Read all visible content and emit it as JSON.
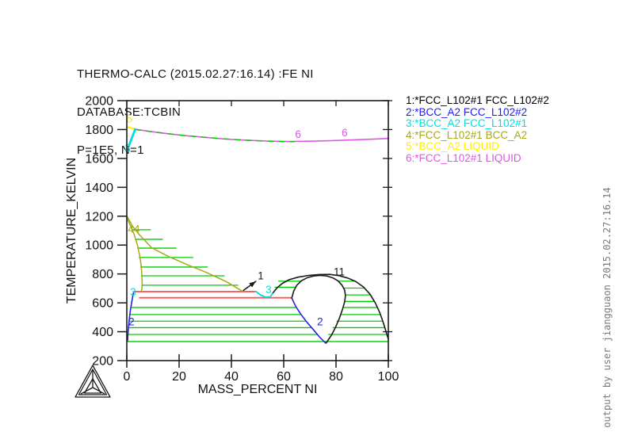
{
  "header": {
    "line1": "THERMO-CALC (2015.02.27:16.14) :FE NI",
    "line2": "DATABASE:TCBIN",
    "line3": "P=1E5, N=1"
  },
  "legend": {
    "items": [
      {
        "label": "1:*FCC_L102#1 FCC_L102#2",
        "color": "#000000"
      },
      {
        "label": "2:*BCC_A2 FCC_L102#2",
        "color": "#1a1aff"
      },
      {
        "label": "3:*BCC_A2 FCC_L102#1",
        "color": "#00e0e0"
      },
      {
        "label": "4:*FCC_L102#1 BCC_A2",
        "color": "#a8a818"
      },
      {
        "label": "5:*BCC_A2 LIQUID",
        "color": "#ffee00"
      },
      {
        "label": "6:*FCC_L102#1 LIQUID",
        "color": "#e055e5"
      }
    ]
  },
  "sidebar_note": {
    "text": "output by user jiangguaon  2015.02.27:16.14",
    "color": "#7a7a7a"
  },
  "logo": {
    "name": "thermo-calc-triangle"
  },
  "chart_data": {
    "type": "line",
    "title": "",
    "xlabel": "MASS_PERCENT NI",
    "ylabel": "TEMPERATURE_KELVIN",
    "xlim": [
      0,
      100
    ],
    "ylim": [
      200,
      2000
    ],
    "xticks": [
      0,
      20,
      40,
      60,
      80,
      100
    ],
    "yticks": [
      200,
      400,
      600,
      800,
      1000,
      1200,
      1400,
      1600,
      1800,
      2000
    ],
    "grid": false,
    "legend_position": "outside-right",
    "colors": {
      "tie": "#00cc00",
      "invariant": "#ff5555",
      "blue": "#2222ee",
      "cyan": "#00dddd",
      "olive": "#a8a818",
      "yellow": "#ffee00",
      "magenta": "#e055e5",
      "black": "#1a1a1a"
    },
    "series": [
      {
        "name": "bcc_a2-liquid-boundary",
        "color": "#ffee00",
        "width": 2.2,
        "points": [
          [
            0,
            1818
          ],
          [
            3.2,
            1802
          ]
        ]
      },
      {
        "name": "fcc-liquid-liquidus",
        "color": "#e055e5",
        "width": 1.6,
        "points": [
          [
            3.2,
            1802
          ],
          [
            8,
            1789
          ],
          [
            15,
            1773
          ],
          [
            22,
            1758
          ],
          [
            30,
            1746
          ],
          [
            38,
            1734
          ],
          [
            46,
            1726
          ],
          [
            54,
            1720
          ],
          [
            62,
            1717
          ],
          [
            70,
            1719
          ],
          [
            78,
            1723
          ],
          [
            86,
            1728
          ],
          [
            93,
            1733
          ],
          [
            100,
            1738
          ]
        ]
      },
      {
        "name": "solidus-green-dashed",
        "color": "#00cc00",
        "width": 1.4,
        "dash": "7,7",
        "points": [
          [
            3.2,
            1800
          ],
          [
            10,
            1784
          ],
          [
            18,
            1766
          ],
          [
            26,
            1752
          ],
          [
            34,
            1740
          ],
          [
            42,
            1730
          ],
          [
            50,
            1722
          ],
          [
            58,
            1717
          ],
          [
            64,
            1716
          ]
        ]
      },
      {
        "name": "bcc-fcc-delta-boundary",
        "color": "#00dddd",
        "width": 2.8,
        "points": [
          [
            3.2,
            1802
          ],
          [
            2.0,
            1745
          ],
          [
            0.9,
            1693
          ]
        ]
      },
      {
        "name": "fcc-bcc-wedge-left",
        "color": "#a8a818",
        "width": 1.5,
        "points": [
          [
            0,
            1192
          ],
          [
            1.5,
            1130
          ],
          [
            2.8,
            1075
          ],
          [
            4.0,
            1005
          ],
          [
            4.9,
            930
          ],
          [
            5.5,
            855
          ],
          [
            5.8,
            785
          ],
          [
            5.9,
            720
          ],
          [
            5.6,
            680
          ]
        ]
      },
      {
        "name": "fcc-bcc-wedge-right",
        "color": "#a8a818",
        "width": 1.5,
        "points": [
          [
            0,
            1203
          ],
          [
            2.2,
            1130
          ],
          [
            4.8,
            1072
          ],
          [
            9.5,
            982
          ],
          [
            15.5,
            925
          ],
          [
            23,
            865
          ],
          [
            30.5,
            810
          ],
          [
            38,
            747
          ],
          [
            44,
            683
          ]
        ]
      },
      {
        "name": "bcc-fcc2-boundary-left",
        "color": "#2222ee",
        "width": 1.6,
        "points": [
          [
            2.5,
            668
          ],
          [
            1.9,
            608
          ],
          [
            1.3,
            540
          ],
          [
            0.9,
            478
          ],
          [
            0.6,
            420
          ],
          [
            0.4,
            372
          ],
          [
            0.3,
            338
          ]
        ]
      },
      {
        "name": "bcc-fcc2-boundary-right",
        "color": "#2222ee",
        "width": 1.6,
        "points": [
          [
            63.1,
            633
          ],
          [
            64.6,
            575
          ],
          [
            66.5,
            522
          ],
          [
            68.8,
            468
          ],
          [
            71.3,
            415
          ],
          [
            73.5,
            368
          ],
          [
            75.0,
            340
          ],
          [
            76.0,
            322
          ]
        ]
      },
      {
        "name": "fcc1-fcc2-outer-dome",
        "color": "#1a1a1a",
        "width": 1.6,
        "points": [
          [
            55.7,
            665
          ],
          [
            57.5,
            705
          ],
          [
            59.5,
            735
          ],
          [
            62,
            760
          ],
          [
            65.5,
            778
          ],
          [
            69.5,
            790
          ],
          [
            73.5,
            796
          ],
          [
            77.5,
            797
          ],
          [
            81,
            789
          ],
          [
            84.5,
            772
          ],
          [
            87.5,
            748
          ],
          [
            90.5,
            710
          ],
          [
            93,
            660
          ],
          [
            95,
            600
          ],
          [
            96.8,
            530
          ],
          [
            98.2,
            455
          ],
          [
            99.3,
            390
          ],
          [
            100,
            348
          ]
        ]
      },
      {
        "name": "fcc1-fcc2-inner-curve",
        "color": "#1a1a1a",
        "width": 1.6,
        "points": [
          [
            63.1,
            633
          ],
          [
            63.8,
            680
          ],
          [
            65,
            722
          ],
          [
            66.8,
            753
          ],
          [
            69,
            774
          ],
          [
            71.5,
            786
          ],
          [
            74,
            790
          ],
          [
            76.5,
            786
          ],
          [
            78.8,
            773
          ],
          [
            80.8,
            752
          ],
          [
            82.3,
            722
          ],
          [
            83.3,
            688
          ],
          [
            83.6,
            650
          ],
          [
            83.3,
            607
          ],
          [
            82.4,
            550
          ],
          [
            81.2,
            490
          ],
          [
            79.8,
            430
          ],
          [
            78.2,
            375
          ],
          [
            76.9,
            340
          ],
          [
            76.2,
            322
          ]
        ]
      },
      {
        "name": "bcc-fcc1-cyan-arc",
        "color": "#00dddd",
        "width": 1.8,
        "points": [
          [
            49.4,
            678
          ],
          [
            51.3,
            653
          ],
          [
            53.0,
            640
          ],
          [
            54.8,
            642
          ],
          [
            55.7,
            665
          ]
        ]
      },
      {
        "name": "label-1-leader-arrow",
        "color": "#1a1a1a",
        "width": 1.6,
        "arrow": true,
        "points": [
          [
            44.6,
            686
          ],
          [
            49.3,
            748
          ]
        ]
      }
    ],
    "invariant_lines": {
      "color": "#ff5555",
      "width": 1.9,
      "segments": [
        [
          2.6,
          49.4,
          678
        ],
        [
          4.7,
          63.1,
          635
        ]
      ]
    },
    "tie_lines": {
      "color": "#00cc00",
      "width": 1.3,
      "segments": [
        [
          1.9,
          9.2,
          1106
        ],
        [
          3.1,
          13.8,
          1040
        ],
        [
          4.0,
          19.0,
          979
        ],
        [
          4.6,
          25.4,
          914
        ],
        [
          5.2,
          31.0,
          848
        ],
        [
          5.4,
          37.4,
          787
        ],
        [
          5.6,
          42.6,
          722
        ],
        [
          57.9,
          66.6,
          750
        ],
        [
          56.5,
          64.6,
          708
        ],
        [
          80.9,
          87.3,
          750
        ],
        [
          82.9,
          90.9,
          702
        ],
        [
          83.5,
          93.2,
          655
        ],
        [
          83.3,
          94.7,
          610
        ],
        [
          82.8,
          95.8,
          568
        ],
        [
          81.7,
          97.0,
          519
        ],
        [
          80.2,
          97.9,
          473
        ],
        [
          78.7,
          98.7,
          428
        ],
        [
          77.0,
          99.4,
          381
        ],
        [
          1.55,
          64.9,
          568
        ],
        [
          1.1,
          66.6,
          519
        ],
        [
          0.87,
          68.6,
          473
        ],
        [
          0.64,
          70.7,
          428
        ],
        [
          0.45,
          72.8,
          381
        ],
        [
          0.3,
          100,
          332
        ]
      ]
    },
    "curve_labels": [
      {
        "text": "5",
        "color": "#ffee00",
        "x": 1.0,
        "y": 1875
      },
      {
        "text": "3",
        "color": "#00dddd",
        "x": 0.3,
        "y": 1672
      },
      {
        "text": "6",
        "color": "#e055e5",
        "x": 65.5,
        "y": 1768
      },
      {
        "text": "6",
        "color": "#e055e5",
        "x": 83.3,
        "y": 1778
      },
      {
        "text": "44",
        "color": "#a8a818",
        "x": 2.7,
        "y": 1111
      },
      {
        "text": "1",
        "color": "#1a1a1a",
        "x": 51.2,
        "y": 786
      },
      {
        "text": "11",
        "color": "#1a1a1a",
        "x": 81.2,
        "y": 816
      },
      {
        "text": "3",
        "color": "#00dddd",
        "x": 2.4,
        "y": 676
      },
      {
        "text": "3",
        "color": "#00dddd",
        "x": 54.2,
        "y": 692
      },
      {
        "text": "2",
        "color": "#2222ee",
        "x": 1.8,
        "y": 469
      },
      {
        "text": "2",
        "color": "#2222ee",
        "x": 73.9,
        "y": 469
      }
    ]
  }
}
